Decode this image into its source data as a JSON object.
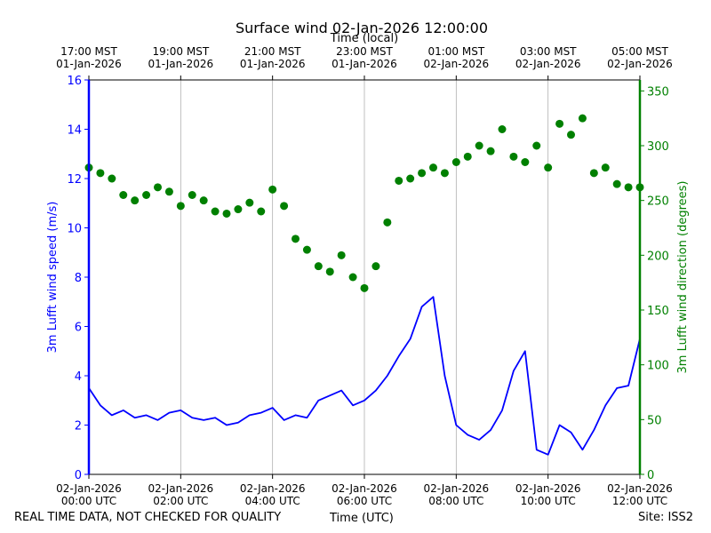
{
  "chart_data": {
    "type": "line+scatter",
    "title": "Surface wind 02-Jan-2026 12:00:00",
    "top_axis_label": "Time (local)",
    "xlabel": "Time (UTC)",
    "ylabel_left": "3m Lufft wind speed (m/s)",
    "ylabel_right": "3m Lufft wind direction (degrees)",
    "x_range_hours_utc": [
      0,
      12
    ],
    "ylim_left": [
      0,
      16
    ],
    "ylim_right": [
      0,
      360
    ],
    "grid": "vertical",
    "left_ticks": [
      "0",
      "2",
      "4",
      "6",
      "8",
      "10",
      "12",
      "14",
      "16"
    ],
    "right_ticks": [
      "0",
      "50",
      "100",
      "150",
      "200",
      "250",
      "300",
      "350"
    ],
    "bottom_ticks": [
      {
        "hour": 0,
        "line1": "02-Jan-2026",
        "line2": "00:00 UTC"
      },
      {
        "hour": 2,
        "line1": "02-Jan-2026",
        "line2": "02:00 UTC"
      },
      {
        "hour": 4,
        "line1": "02-Jan-2026",
        "line2": "04:00 UTC"
      },
      {
        "hour": 6,
        "line1": "02-Jan-2026",
        "line2": "06:00 UTC"
      },
      {
        "hour": 8,
        "line1": "02-Jan-2026",
        "line2": "08:00 UTC"
      },
      {
        "hour": 10,
        "line1": "02-Jan-2026",
        "line2": "10:00 UTC"
      },
      {
        "hour": 12,
        "line1": "02-Jan-2026",
        "line2": "12:00 UTC"
      }
    ],
    "top_ticks": [
      {
        "hour": 0,
        "line1": "17:00 MST",
        "line2": "01-Jan-2026"
      },
      {
        "hour": 2,
        "line1": "19:00 MST",
        "line2": "01-Jan-2026"
      },
      {
        "hour": 4,
        "line1": "21:00 MST",
        "line2": "01-Jan-2026"
      },
      {
        "hour": 6,
        "line1": "23:00 MST",
        "line2": "01-Jan-2026"
      },
      {
        "hour": 8,
        "line1": "01:00 MST",
        "line2": "02-Jan-2026"
      },
      {
        "hour": 10,
        "line1": "03:00 MST",
        "line2": "02-Jan-2026"
      },
      {
        "hour": 12,
        "line1": "05:00 MST",
        "line2": "02-Jan-2026"
      }
    ],
    "series": [
      {
        "name": "wind speed",
        "axis": "left",
        "style": "line",
        "color": "#0000ff",
        "x_hours": [
          0,
          0.25,
          0.5,
          0.75,
          1,
          1.25,
          1.5,
          1.75,
          2,
          2.25,
          2.5,
          2.75,
          3,
          3.25,
          3.5,
          3.75,
          4,
          4.25,
          4.5,
          4.75,
          5,
          5.25,
          5.5,
          5.75,
          6,
          6.25,
          6.5,
          6.75,
          7,
          7.25,
          7.5,
          7.75,
          8,
          8.25,
          8.5,
          8.75,
          9,
          9.25,
          9.5,
          9.75,
          10,
          10.25,
          10.5,
          10.75,
          11,
          11.25,
          11.5,
          11.75,
          12
        ],
        "values": [
          3.5,
          2.8,
          2.4,
          2.6,
          2.3,
          2.4,
          2.2,
          2.5,
          2.6,
          2.3,
          2.2,
          2.3,
          2.0,
          2.1,
          2.4,
          2.5,
          2.7,
          2.2,
          2.4,
          2.3,
          3.0,
          3.2,
          3.4,
          2.8,
          3.0,
          3.4,
          4.0,
          4.8,
          5.5,
          6.8,
          7.2,
          4.0,
          2.0,
          1.6,
          1.4,
          1.8,
          2.6,
          4.2,
          5.0,
          1.0,
          0.8,
          2.0,
          1.7,
          1.0,
          1.8,
          2.8,
          3.5,
          3.6,
          5.5
        ]
      },
      {
        "name": "wind direction",
        "axis": "right",
        "style": "scatter",
        "color": "#008000",
        "x_hours": [
          0,
          0.25,
          0.5,
          0.75,
          1,
          1.25,
          1.5,
          1.75,
          2,
          2.25,
          2.5,
          2.75,
          3,
          3.25,
          3.5,
          3.75,
          4,
          4.25,
          4.5,
          4.75,
          5,
          5.25,
          5.5,
          5.75,
          6,
          6.25,
          6.5,
          6.75,
          7,
          7.25,
          7.5,
          7.75,
          8,
          8.25,
          8.5,
          8.75,
          9,
          9.25,
          9.5,
          9.75,
          10,
          10.25,
          10.5,
          10.75,
          11,
          11.25,
          11.5,
          11.75,
          12
        ],
        "values": [
          280,
          275,
          270,
          255,
          250,
          255,
          262,
          258,
          245,
          255,
          250,
          240,
          238,
          242,
          248,
          240,
          260,
          245,
          215,
          205,
          190,
          185,
          200,
          180,
          170,
          190,
          230,
          268,
          270,
          275,
          280,
          275,
          285,
          290,
          300,
          295,
          315,
          290,
          285,
          300,
          280,
          320,
          310,
          325,
          275,
          280,
          265,
          262,
          262
        ]
      }
    ]
  },
  "footer": {
    "left": "REAL TIME DATA, NOT CHECKED FOR QUALITY",
    "center": "Time (UTC)",
    "right": "Site: ISS2"
  },
  "colors": {
    "speed": "#0000ff",
    "direction": "#008000",
    "grid": "#b0b0b0"
  }
}
